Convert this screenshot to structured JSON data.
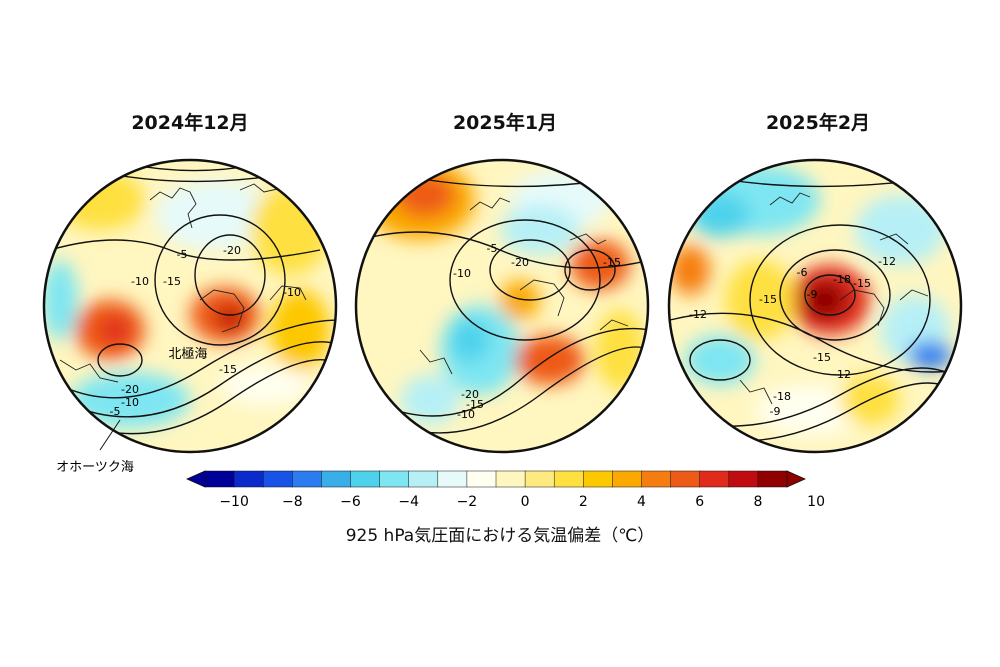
{
  "panels": [
    {
      "title": "2024年12月",
      "contour_labels": [
        "-5",
        "-20",
        "-10",
        "-15",
        "-10",
        "-15",
        "-20",
        "-10",
        "-5"
      ],
      "region_labels": [
        "北極海",
        "オホーツク海"
      ]
    },
    {
      "title": "2025年1月",
      "contour_labels": [
        "-5",
        "-20",
        "-10",
        "-15",
        "-20",
        "-15",
        "-10"
      ]
    },
    {
      "title": "2025年2月",
      "contour_labels": [
        "-6",
        "-9",
        "-18",
        "-12",
        "-15",
        "-15",
        "-12",
        "-15",
        "-12",
        "-18",
        "-9"
      ]
    }
  ],
  "colorbar": {
    "ticks": [
      "−10",
      "−8",
      "−6",
      "−4",
      "−2",
      "0",
      "2",
      "4",
      "6",
      "8",
      "10"
    ],
    "caption": "925 hPa気圧面における気温偏差（℃）",
    "colors": [
      "#000099",
      "#0a2acc",
      "#1653e6",
      "#2b7cf0",
      "#3aaee8",
      "#4ed2ec",
      "#7ee6f2",
      "#b6f0f6",
      "#e6fafa",
      "#fffff0",
      "#fff6c0",
      "#ffea80",
      "#fee040",
      "#fdc800",
      "#fba800",
      "#f57d10",
      "#ee5a18",
      "#e02a1c",
      "#c00c10",
      "#900000"
    ]
  },
  "chart_data": [
    {
      "type": "heatmap",
      "title": "2024年12月",
      "variable": "925 hPa気圧面における気温偏差（℃）",
      "contour_labels": [
        -5,
        -20,
        -10,
        -15,
        -10,
        -15,
        -20,
        -10,
        -5
      ],
      "colorbar_range": [
        -10,
        10
      ],
      "colorbar_ticks": [
        -10,
        -8,
        -6,
        -4,
        -2,
        0,
        2,
        4,
        6,
        8,
        10
      ]
    },
    {
      "type": "heatmap",
      "title": "2025年1月",
      "variable": "925 hPa気圧面における気温偏差（℃）",
      "contour_labels": [
        -5,
        -20,
        -10,
        -15,
        -20,
        -15,
        -10
      ],
      "colorbar_range": [
        -10,
        10
      ],
      "colorbar_ticks": [
        -10,
        -8,
        -6,
        -4,
        -2,
        0,
        2,
        4,
        6,
        8,
        10
      ]
    },
    {
      "type": "heatmap",
      "title": "2025年2月",
      "variable": "925 hPa気圧面における気温偏差（℃）",
      "contour_labels": [
        -6,
        -9,
        -18,
        -12,
        -15,
        -15,
        -12,
        -15,
        -12,
        -18,
        -9
      ],
      "colorbar_range": [
        -10,
        10
      ],
      "colorbar_ticks": [
        -10,
        -8,
        -6,
        -4,
        -2,
        0,
        2,
        4,
        6,
        8,
        10
      ]
    }
  ]
}
